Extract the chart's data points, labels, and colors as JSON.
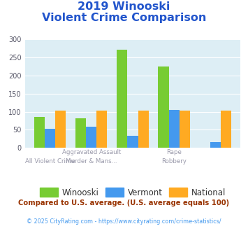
{
  "title_line1": "2019 Winooski",
  "title_line2": "Violent Crime Comparison",
  "winooski": [
    85,
    82,
    272,
    225,
    0
  ],
  "vermont": [
    53,
    59,
    34,
    105,
    15
  ],
  "national": [
    102,
    102,
    102,
    102,
    102
  ],
  "winooski_color": "#77cc33",
  "vermont_color": "#4499ee",
  "national_color": "#ffaa22",
  "bg_color": "#ddeef5",
  "title_color": "#2255cc",
  "xlabel_color": "#9999aa",
  "ylim": [
    0,
    300
  ],
  "yticks": [
    0,
    50,
    100,
    150,
    200,
    250,
    300
  ],
  "top_labels": [
    "",
    "Aggravated Assault",
    "",
    "Rape",
    ""
  ],
  "bot_labels": [
    "All Violent Crime",
    "Murder & Mans...",
    "",
    "Robbery",
    ""
  ],
  "footnote1": "Compared to U.S. average. (U.S. average equals 100)",
  "footnote2": "© 2025 CityRating.com - https://www.cityrating.com/crime-statistics/",
  "footnote1_color": "#993300",
  "footnote2_color": "#4499ee",
  "legend_labels": [
    "Winooski",
    "Vermont",
    "National"
  ]
}
